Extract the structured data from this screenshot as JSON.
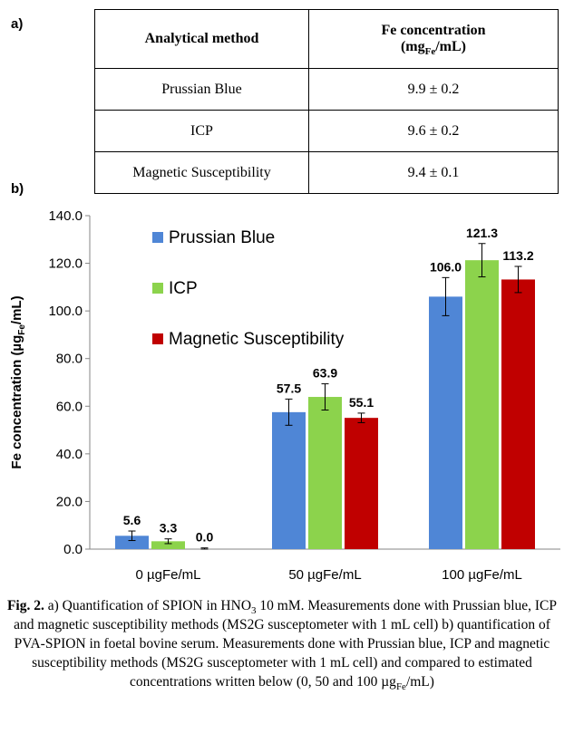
{
  "panel_a_label": "a)",
  "panel_b_label": "b)",
  "table": {
    "header_method": "Analytical method",
    "header_conc_main": "Fe concentration",
    "header_conc_unit_pre": "(mg",
    "header_conc_unit_sub": "Fe",
    "header_conc_unit_post": "/mL)",
    "rows": [
      {
        "method": "Prussian Blue",
        "value": "9.9 ± 0.2"
      },
      {
        "method": "ICP",
        "value": "9.6 ± 0.2"
      },
      {
        "method": "Magnetic Susceptibility",
        "value": "9.4 ± 0.1"
      }
    ]
  },
  "chart_data": {
    "type": "bar",
    "categories": [
      "0 µgFe/mL",
      "50 µgFe/mL",
      "100 µgFe/mL"
    ],
    "series": [
      {
        "name": "Prussian Blue",
        "color": "#4F86D6",
        "values": [
          5.6,
          57.5,
          106.0
        ],
        "errors": [
          2.0,
          5.5,
          8.0
        ],
        "labels": [
          "5.6",
          "57.5",
          "106.0"
        ]
      },
      {
        "name": "ICP",
        "color": "#8CD34C",
        "values": [
          3.3,
          63.9,
          121.3
        ],
        "errors": [
          1.0,
          5.5,
          7.0
        ],
        "labels": [
          "3.3",
          "63.9",
          "121.3"
        ]
      },
      {
        "name": "Magnetic Susceptibility",
        "color": "#C00000",
        "values": [
          0.0,
          55.1,
          113.2
        ],
        "errors": [
          0.5,
          2.0,
          5.5
        ],
        "labels": [
          "0.0",
          "55.1",
          "113.2"
        ]
      }
    ],
    "ylabel_pre": "Fe concentration (µg",
    "ylabel_sub": "Fe",
    "ylabel_post": "/mL)",
    "ylim": [
      0,
      140
    ],
    "yticks": [
      "0.0",
      "20.0",
      "40.0",
      "60.0",
      "80.0",
      "100.0",
      "120.0",
      "140.0"
    ],
    "legend": "upper-left",
    "grid": false
  },
  "caption": {
    "fig_label": "Fig. 2.",
    "text_1": " a) Quantification of SPION in HNO",
    "text_1_sub": "3",
    "text_2": " 10 mM. Measurements done with Prussian blue, ICP and magnetic susceptibility methods (MS2G susceptometer with 1 mL cell) b) quantification of PVA-SPION in foetal bovine serum. Measurements done with Prussian blue, ICP and magnetic susceptibility methods (MS2G susceptometer with 1 mL cell) and compared to estimated concentrations written below (0, 50 and 100 µg",
    "text_2_sub": "Fe",
    "text_3": "/mL)"
  }
}
